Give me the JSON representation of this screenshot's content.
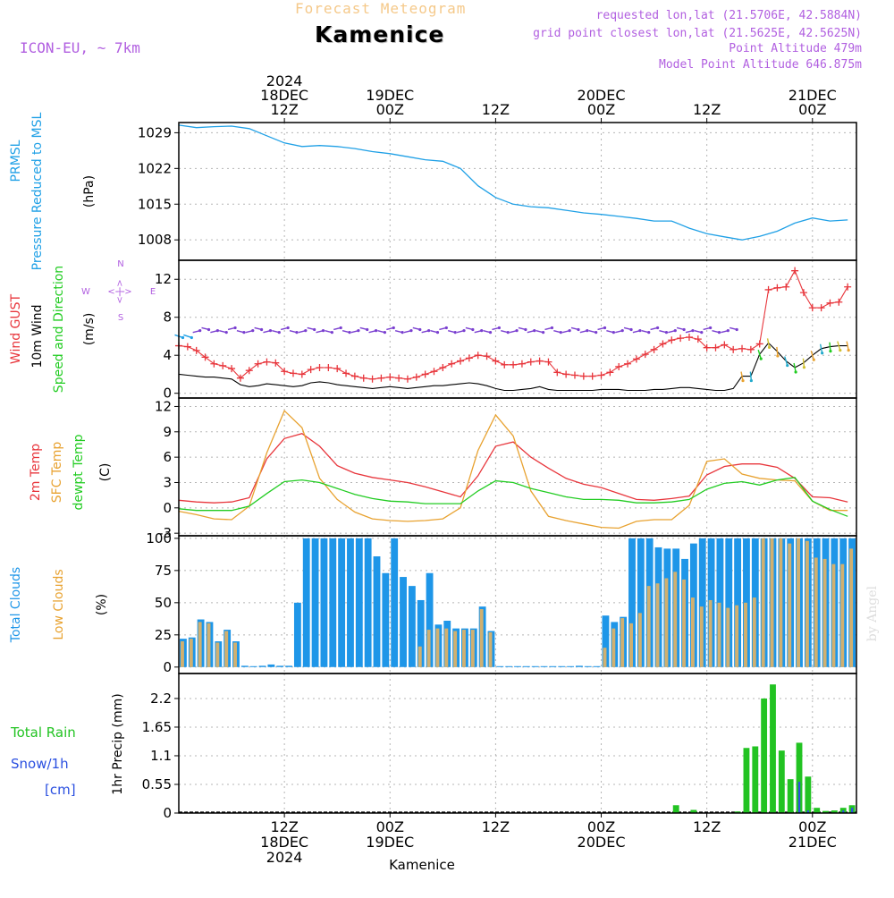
{
  "header": {
    "forecast_title": "Forecast Meteogram",
    "location": "Kamenice",
    "model": "ICON-EU, ~ 7km",
    "requested": "requested lon,lat (21.5706E, 42.5884N)",
    "grid_point": "grid point closest lon,lat (21.5625E, 42.5625N)",
    "point_altitude": "Point Altitude 479m",
    "model_altitude": "Model Point Altitude 646.875m",
    "credit": "by Angel",
    "bottom_location": "Kamenice"
  },
  "time_axis": {
    "top_labels": [
      {
        "t": 12,
        "lines": [
          "2024",
          "18DEC",
          "12Z"
        ]
      },
      {
        "t": 24,
        "lines": [
          "19DEC",
          "00Z"
        ]
      },
      {
        "t": 36,
        "lines": [
          "12Z"
        ]
      },
      {
        "t": 48,
        "lines": [
          "20DEC",
          "00Z"
        ]
      },
      {
        "t": 60,
        "lines": [
          "12Z"
        ]
      },
      {
        "t": 72,
        "lines": [
          "21DEC",
          "00Z"
        ]
      }
    ],
    "bottom_labels": [
      {
        "t": 12,
        "lines": [
          "12Z",
          "18DEC",
          "2024"
        ]
      },
      {
        "t": 24,
        "lines": [
          "00Z",
          "19DEC"
        ]
      },
      {
        "t": 36,
        "lines": [
          "12Z"
        ]
      },
      {
        "t": 48,
        "lines": [
          "00Z",
          "20DEC"
        ]
      },
      {
        "t": 60,
        "lines": [
          "12Z"
        ]
      },
      {
        "t": 72,
        "lines": [
          "00Z",
          "21DEC"
        ]
      }
    ],
    "range_hours": [
      0,
      77
    ]
  },
  "panel_labels": {
    "pressure": [
      "PRMSL",
      "Pressure Reduced to MSL"
    ],
    "pressure_unit": "(hPa)",
    "wind_gust": "Wind GUST",
    "wind_10m": "10m Wind",
    "wind_dir": "Speed and Direction",
    "wind_unit": "(m/s)",
    "compass": {
      "n": "N",
      "s": "S",
      "w": "W",
      "e": "E",
      "h": "<-|->"
    },
    "temp_2m": "2m Temp",
    "temp_sfc": "SFC Temp",
    "temp_dew": "dewpt Temp",
    "temp_unit": "(C)",
    "total_clouds": "Total Clouds",
    "low_clouds": "Low Clouds",
    "cloud_unit": "(%)",
    "total_rain": "Total  Rain",
    "snow": "Snow/1h",
    "snow_unit": "[cm]",
    "precip_axis": "1hr Precip (mm)"
  },
  "colors": {
    "pressure": "#1fa0e6",
    "gust": "#e8363c",
    "wind10": "#000000",
    "temp2m": "#e8363c",
    "sfc": "#e8a230",
    "dew": "#22cc22",
    "total_cloud": "#1e96e8",
    "low_cloud": "#d0b070",
    "rain": "#22c322",
    "snow": "#2b50e0",
    "label_purple": "#b15fe0"
  },
  "chart_data": [
    {
      "type": "line",
      "panel": "pressure",
      "title": "PRMSL Pressure Reduced to MSL",
      "ylabel": "(hPa)",
      "ylim": [
        1004,
        1031
      ],
      "yticks": [
        1008,
        1015,
        1022,
        1029
      ],
      "x": [
        0,
        2,
        4,
        6,
        8,
        10,
        12,
        14,
        16,
        18,
        20,
        22,
        24,
        26,
        28,
        30,
        32,
        34,
        36,
        38,
        40,
        42,
        44,
        46,
        48,
        50,
        52,
        54,
        56,
        58,
        60,
        62,
        64,
        66,
        68,
        70,
        72,
        74,
        76
      ],
      "series": [
        {
          "name": "PRMSL",
          "values": [
            1030.5,
            1030.0,
            1030.2,
            1030.3,
            1029.8,
            1028.4,
            1027.0,
            1026.3,
            1026.5,
            1026.3,
            1025.9,
            1025.3,
            1024.9,
            1024.3,
            1023.7,
            1023.4,
            1022.0,
            1018.6,
            1016.3,
            1015.0,
            1014.5,
            1014.3,
            1013.8,
            1013.3,
            1013.0,
            1012.6,
            1012.2,
            1011.7,
            1011.7,
            1010.3,
            1009.2,
            1008.6,
            1008.0,
            1008.7,
            1009.7,
            1011.3,
            1012.3,
            1011.7,
            1011.9
          ]
        }
      ]
    },
    {
      "type": "line",
      "panel": "wind",
      "title": "Wind GUST / 10m Wind Speed and Direction",
      "ylabel": "(m/s)",
      "ylim": [
        -0.5,
        14
      ],
      "yticks": [
        0,
        4,
        8,
        12
      ],
      "x": [
        0,
        1,
        2,
        3,
        4,
        5,
        6,
        7,
        8,
        9,
        10,
        11,
        12,
        13,
        14,
        15,
        16,
        17,
        18,
        19,
        20,
        21,
        22,
        23,
        24,
        25,
        26,
        27,
        28,
        29,
        30,
        31,
        32,
        33,
        34,
        35,
        36,
        37,
        38,
        39,
        40,
        41,
        42,
        43,
        44,
        45,
        46,
        47,
        48,
        49,
        50,
        51,
        52,
        53,
        54,
        55,
        56,
        57,
        58,
        59,
        60,
        61,
        62,
        63,
        64,
        65,
        66,
        67,
        68,
        69,
        70,
        71,
        72,
        73,
        74,
        75,
        76
      ],
      "series": [
        {
          "name": "Wind GUST",
          "values": [
            5.0,
            4.9,
            4.5,
            3.8,
            3.1,
            2.9,
            2.6,
            1.6,
            2.4,
            3.1,
            3.3,
            3.2,
            2.3,
            2.1,
            2.0,
            2.5,
            2.7,
            2.7,
            2.6,
            2.1,
            1.8,
            1.6,
            1.5,
            1.6,
            1.7,
            1.6,
            1.5,
            1.7,
            2.0,
            2.3,
            2.7,
            3.1,
            3.4,
            3.7,
            4.0,
            3.9,
            3.4,
            3.0,
            3.0,
            3.1,
            3.3,
            3.4,
            3.3,
            2.2,
            2.0,
            1.9,
            1.8,
            1.8,
            1.9,
            2.2,
            2.8,
            3.1,
            3.6,
            4.1,
            4.6,
            5.2,
            5.6,
            5.8,
            5.9,
            5.7,
            4.8,
            4.8,
            5.1,
            4.6,
            4.7,
            4.6,
            5.2,
            10.9,
            11.1,
            11.2,
            12.9,
            10.6,
            9.0,
            9.0,
            9.5,
            9.6,
            11.2
          ]
        },
        {
          "name": "10m Wind",
          "values": [
            2.0,
            1.9,
            1.8,
            1.7,
            1.7,
            1.6,
            1.5,
            0.9,
            0.7,
            0.8,
            1.0,
            0.9,
            0.8,
            0.7,
            0.8,
            1.1,
            1.2,
            1.1,
            0.9,
            0.8,
            0.7,
            0.6,
            0.5,
            0.6,
            0.7,
            0.6,
            0.5,
            0.6,
            0.7,
            0.8,
            0.8,
            0.9,
            1.0,
            1.1,
            1.0,
            0.8,
            0.5,
            0.3,
            0.3,
            0.4,
            0.5,
            0.7,
            0.4,
            0.3,
            0.3,
            0.3,
            0.3,
            0.3,
            0.4,
            0.4,
            0.4,
            0.3,
            0.3,
            0.3,
            0.4,
            0.4,
            0.5,
            0.6,
            0.6,
            0.5,
            0.4,
            0.3,
            0.3,
            0.5,
            1.8,
            1.8,
            4.1,
            5.3,
            4.4,
            3.4,
            2.7,
            3.2,
            4.0,
            4.7,
            4.9,
            5.0,
            5.0
          ]
        }
      ]
    },
    {
      "type": "line",
      "panel": "temperature",
      "title": "2m Temp / SFC Temp / dewpt Temp",
      "ylabel": "(C)",
      "ylim": [
        -3.3,
        13
      ],
      "yticks": [
        -3,
        0,
        3,
        6,
        9,
        12
      ],
      "x": [
        0,
        2,
        4,
        6,
        8,
        10,
        12,
        14,
        16,
        18,
        20,
        22,
        24,
        26,
        28,
        30,
        32,
        34,
        36,
        38,
        40,
        42,
        44,
        46,
        48,
        50,
        52,
        54,
        56,
        58,
        60,
        62,
        64,
        66,
        68,
        70,
        72,
        74,
        76
      ],
      "series": [
        {
          "name": "2m Temp",
          "values": [
            0.9,
            0.7,
            0.6,
            0.7,
            1.2,
            5.8,
            8.2,
            8.8,
            7.3,
            5.0,
            4.1,
            3.6,
            3.3,
            3.0,
            2.5,
            1.9,
            1.3,
            3.8,
            7.3,
            7.8,
            6.0,
            4.7,
            3.5,
            2.8,
            2.4,
            1.7,
            1.0,
            0.9,
            1.1,
            1.4,
            3.9,
            4.9,
            5.2,
            5.2,
            4.8,
            3.5,
            1.3,
            1.2,
            0.7
          ]
        },
        {
          "name": "SFC Temp",
          "values": [
            -0.4,
            -0.8,
            -1.3,
            -1.4,
            0.2,
            6.5,
            11.5,
            9.5,
            3.5,
            1.0,
            -0.5,
            -1.3,
            -1.5,
            -1.6,
            -1.5,
            -1.3,
            0.0,
            6.8,
            11.0,
            8.5,
            2.0,
            -1.0,
            -1.5,
            -1.9,
            -2.3,
            -2.4,
            -1.6,
            -1.4,
            -1.4,
            0.3,
            5.5,
            5.8,
            4.0,
            3.5,
            3.3,
            3.2,
            0.8,
            -0.3,
            -0.3
          ]
        },
        {
          "name": "dewpt Temp",
          "values": [
            -0.1,
            -0.3,
            -0.3,
            -0.3,
            0.2,
            1.7,
            3.1,
            3.3,
            3.0,
            2.3,
            1.6,
            1.1,
            0.8,
            0.7,
            0.5,
            0.5,
            0.5,
            2.0,
            3.2,
            3.0,
            2.3,
            1.8,
            1.3,
            1.0,
            1.0,
            0.9,
            0.6,
            0.6,
            0.7,
            1.0,
            2.2,
            2.9,
            3.1,
            2.7,
            3.3,
            3.6,
            0.8,
            -0.2,
            -1.0
          ]
        }
      ]
    },
    {
      "type": "bar",
      "panel": "clouds",
      "title": "Total Clouds / Low Clouds",
      "ylabel": "(%)",
      "ylim": [
        -5,
        102
      ],
      "yticks": [
        0,
        25,
        50,
        75,
        100
      ],
      "x": [
        0,
        1,
        2,
        3,
        4,
        5,
        6,
        7,
        8,
        9,
        10,
        11,
        12,
        13,
        14,
        15,
        16,
        17,
        18,
        19,
        20,
        21,
        22,
        23,
        24,
        25,
        26,
        27,
        28,
        29,
        30,
        31,
        32,
        33,
        34,
        35,
        36,
        37,
        38,
        39,
        40,
        41,
        42,
        43,
        44,
        45,
        46,
        47,
        48,
        49,
        50,
        51,
        52,
        53,
        54,
        55,
        56,
        57,
        58,
        59,
        60,
        61,
        62,
        63,
        64,
        65,
        66,
        67,
        68,
        69,
        70,
        71,
        72,
        73,
        74,
        75,
        76
      ],
      "series": [
        {
          "name": "Total Clouds",
          "values": [
            22,
            23,
            37,
            35,
            20,
            29,
            20,
            1,
            0,
            1,
            2,
            1,
            1,
            50,
            100,
            100,
            100,
            100,
            100,
            100,
            100,
            100,
            86,
            73,
            100,
            70,
            63,
            52,
            73,
            33,
            36,
            30,
            30,
            30,
            47,
            28,
            0,
            0,
            0,
            0,
            0,
            0,
            0,
            0,
            0,
            1,
            0,
            0,
            40,
            35,
            39,
            100,
            100,
            100,
            93,
            92,
            92,
            84,
            96,
            100,
            100,
            100,
            100,
            100,
            100,
            100,
            100,
            100,
            100,
            100,
            100,
            100,
            100,
            100,
            100,
            100,
            100
          ]
        },
        {
          "name": "Low Clouds",
          "values": [
            20,
            22,
            35,
            34,
            19,
            28,
            19,
            0,
            0,
            0,
            0,
            0,
            0,
            0,
            0,
            0,
            0,
            0,
            0,
            0,
            0,
            0,
            0,
            0,
            0,
            0,
            0,
            16,
            29,
            30,
            30,
            28,
            29,
            29,
            45,
            27,
            0,
            0,
            0,
            0,
            0,
            0,
            0,
            0,
            0,
            0,
            0,
            0,
            15,
            30,
            38,
            34,
            42,
            63,
            65,
            69,
            74,
            68,
            54,
            47,
            52,
            50,
            46,
            48,
            50,
            54,
            100,
            100,
            100,
            96,
            100,
            98,
            85,
            84,
            80,
            80,
            92
          ]
        }
      ]
    },
    {
      "type": "bar",
      "panel": "precipitation",
      "title": "Total Rain / Snow 1hr Precip",
      "ylabel": "1hr Precip (mm)",
      "ylim": [
        0,
        2.68
      ],
      "yticks": [
        0,
        0.55,
        1.1,
        1.65,
        2.2
      ],
      "x": [
        56,
        58,
        63,
        64,
        65,
        66,
        67,
        68,
        69,
        70,
        71,
        72,
        73,
        74,
        75,
        76
      ],
      "series": [
        {
          "name": "Total Rain",
          "values": [
            0.15,
            0.06,
            0.03,
            1.25,
            1.28,
            2.2,
            2.47,
            1.2,
            0.65,
            1.35,
            0.7,
            0.1,
            0.04,
            0.05,
            0.1,
            0.15
          ]
        },
        {
          "name": "Snow/1h",
          "values": [
            0,
            0,
            0,
            0,
            0,
            0,
            0,
            0,
            0,
            0.6,
            0.05,
            0,
            0,
            0,
            0.05,
            0.1
          ]
        }
      ]
    }
  ]
}
